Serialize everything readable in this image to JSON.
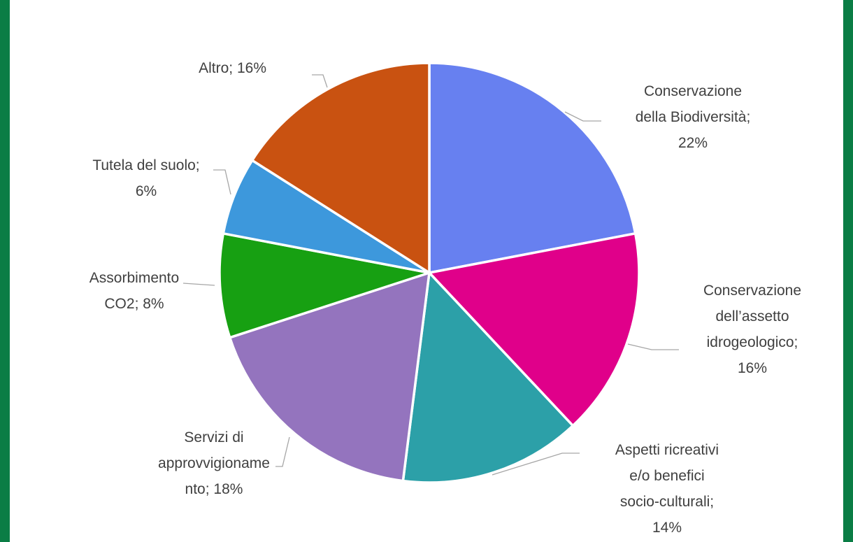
{
  "chart_data": {
    "type": "pie",
    "title": "",
    "slices": [
      {
        "label_lines": [
          "Conservazione",
          "della Biodiversità;",
          "22%"
        ],
        "value": 22,
        "color": "#6780f0"
      },
      {
        "label_lines": [
          "Conservazione",
          "dell’assetto",
          "idrogeologico;",
          "16%"
        ],
        "value": 16,
        "color": "#e0008a"
      },
      {
        "label_lines": [
          "Aspetti ricreativi",
          "e/o benefici",
          "socio-culturali;",
          "14%"
        ],
        "value": 14,
        "color": "#2ca0a8"
      },
      {
        "label_lines": [
          "Servizi di",
          "approvvigioname",
          "nto; 18%"
        ],
        "value": 18,
        "color": "#9474be"
      },
      {
        "label_lines": [
          "Assorbimento",
          "CO2; 8%"
        ],
        "value": 8,
        "color": "#17a012"
      },
      {
        "label_lines": [
          "Tutela del suolo;",
          "6%"
        ],
        "value": 6,
        "color": "#3d98dc"
      },
      {
        "label_lines": [
          "Altro; 16%"
        ],
        "value": 16,
        "color": "#c95211"
      }
    ]
  }
}
